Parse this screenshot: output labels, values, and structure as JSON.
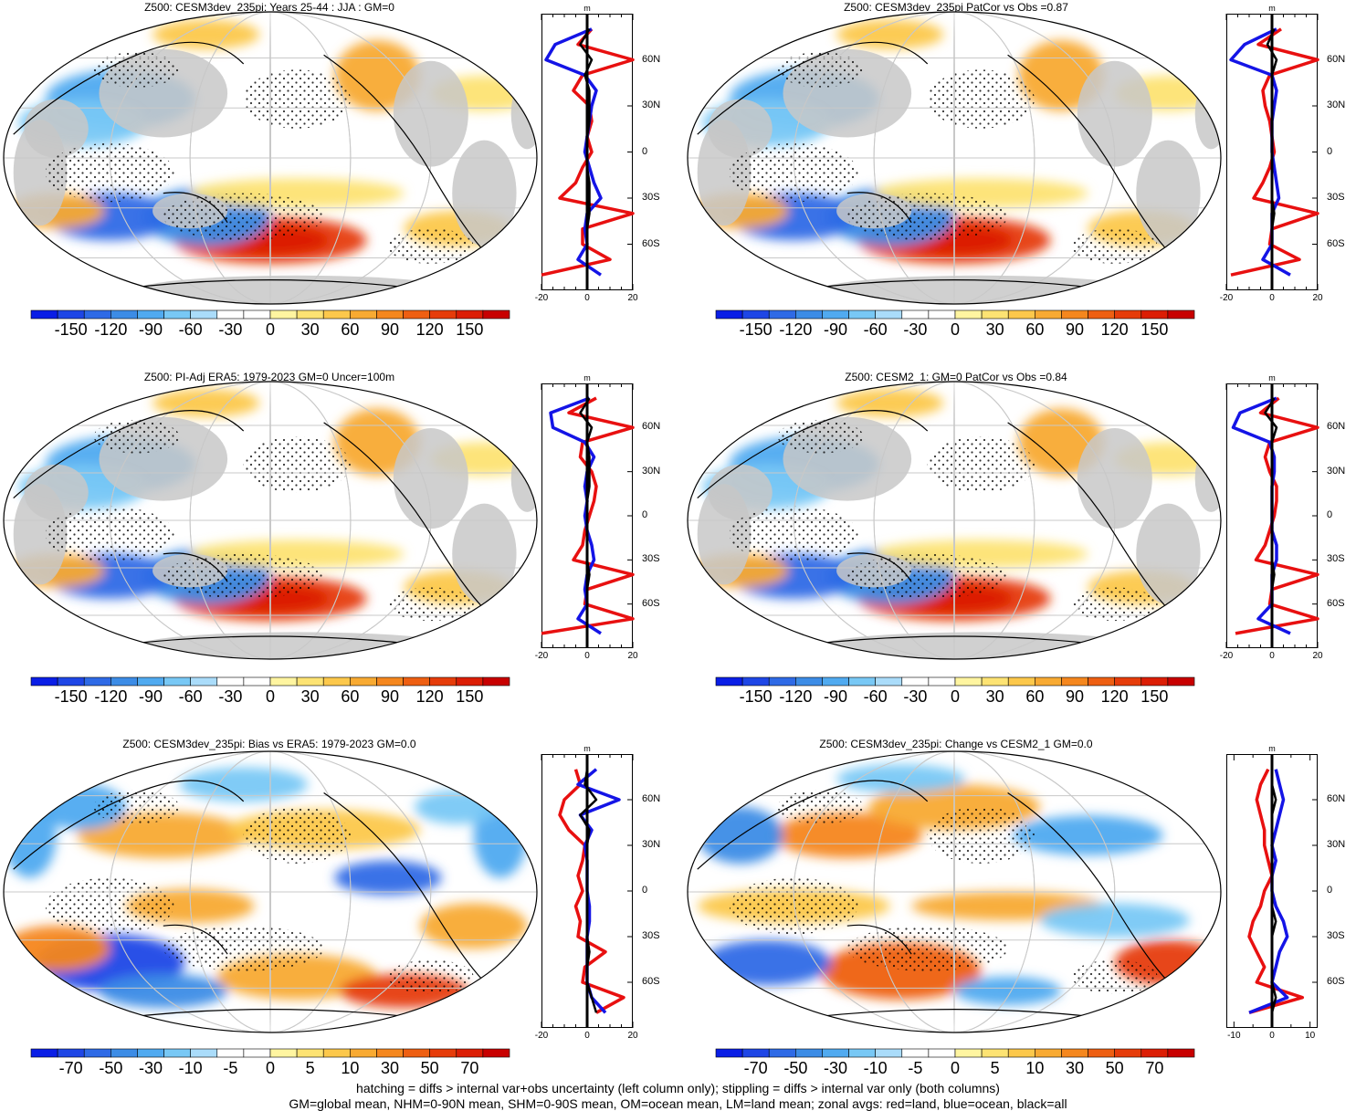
{
  "panels": [
    {
      "title": "Z500: CESM3dev_235pi: Years 25-44 : JJA : GM=0",
      "colorbar": {
        "labels": [
          "-150",
          "-120",
          "-90",
          "-60",
          "-30",
          "0",
          "30",
          "60",
          "90",
          "120",
          "150"
        ]
      },
      "profile": {
        "unit": "m",
        "xticks": [
          "-20",
          "0",
          "20"
        ],
        "yticks": [
          "60N",
          "30N",
          "0",
          "30S",
          "60S"
        ]
      }
    },
    {
      "title": "Z500: CESM3dev_235pi PatCor vs Obs =0.87",
      "colorbar": {
        "labels": [
          "-150",
          "-120",
          "-90",
          "-60",
          "-30",
          "0",
          "30",
          "60",
          "90",
          "120",
          "150"
        ]
      },
      "profile": {
        "unit": "m",
        "xticks": [
          "-20",
          "0",
          "20"
        ],
        "yticks": [
          "60N",
          "30N",
          "0",
          "30S",
          "60S"
        ]
      }
    },
    {
      "title": "Z500: PI-Adj ERA5: 1979-2023 GM=0 Uncer=100m",
      "colorbar": {
        "labels": [
          "-150",
          "-120",
          "-90",
          "-60",
          "-30",
          "0",
          "30",
          "60",
          "90",
          "120",
          "150"
        ]
      },
      "profile": {
        "unit": "m",
        "xticks": [
          "-20",
          "0",
          "20"
        ],
        "yticks": [
          "60N",
          "30N",
          "0",
          "30S",
          "60S"
        ]
      }
    },
    {
      "title": "Z500: CESM2_1: GM=0 PatCor vs Obs =0.84",
      "colorbar": {
        "labels": [
          "-150",
          "-120",
          "-90",
          "-60",
          "-30",
          "0",
          "30",
          "60",
          "90",
          "120",
          "150"
        ]
      },
      "profile": {
        "unit": "m",
        "xticks": [
          "-20",
          "0",
          "20"
        ],
        "yticks": [
          "60N",
          "30N",
          "0",
          "30S",
          "60S"
        ]
      }
    },
    {
      "title": "Z500: CESM3dev_235pi: Bias vs ERA5: 1979-2023 GM=0.0",
      "colorbar": {
        "labels": [
          "-70",
          "-50",
          "-30",
          "-10",
          "-5",
          "0",
          "5",
          "10",
          "30",
          "50",
          "70"
        ]
      },
      "profile": {
        "unit": "m",
        "xticks": [
          "-20",
          "0",
          "20"
        ],
        "yticks": [
          "60N",
          "30N",
          "0",
          "30S",
          "60S"
        ]
      }
    },
    {
      "title": "Z500: CESM3dev_235pi: Change vs CESM2_1 GM=0.0",
      "colorbar": {
        "labels": [
          "-70",
          "-50",
          "-30",
          "-10",
          "-5",
          "0",
          "5",
          "10",
          "30",
          "50",
          "70"
        ]
      },
      "profile": {
        "unit": "m",
        "xticks": [
          "-10",
          "0",
          "10"
        ],
        "yticks": [
          "60N",
          "30N",
          "0",
          "30S",
          "60S"
        ]
      }
    }
  ],
  "footer": {
    "line1": "hatching = diffs > internal var+obs uncertainty (left column only); stippling = diffs > internal var only (both columns)",
    "line2": "GM=global mean, NHM=0-90N mean, SHM=0-90S mean, OM=ocean mean, LM=land mean; zonal avgs: red=land, blue=ocean, black=all"
  },
  "colors": {
    "scale": [
      "#0a1ee6",
      "#1e46e6",
      "#2e6ae6",
      "#3c8ce6",
      "#50aaf0",
      "#78c8f5",
      "#aadcfa",
      "#ffffff",
      "#ffffff",
      "#fff5a0",
      "#fde373",
      "#fcc84b",
      "#f8aa32",
      "#f5871e",
      "#ee5f12",
      "#e63c0a",
      "#dc1e05",
      "#c80000"
    ],
    "land": "#c8c8c8",
    "grid": "#c8c8c8",
    "land_line": "#e81010",
    "ocean_line": "#1414e6",
    "all_line": "#000000"
  },
  "chart_data": [
    {
      "type": "heatmap",
      "title": "Z500: CESM3dev_235pi: Years 25-44 : JJA : GM=0",
      "colorbar_levels": [
        -150,
        -120,
        -90,
        -60,
        -30,
        0,
        30,
        60,
        90,
        120,
        150
      ],
      "zonal_mean": {
        "lat": [
          80,
          70,
          60,
          50,
          40,
          30,
          20,
          10,
          0,
          -10,
          -20,
          -30,
          -40,
          -50,
          -60,
          -70,
          -80
        ],
        "land": [
          2,
          -4,
          20,
          -2,
          -6,
          1,
          2,
          0,
          2,
          -2,
          -5,
          -12,
          20,
          -2,
          -2,
          10,
          -20
        ],
        "ocean": [
          2,
          -14,
          -18,
          -1,
          4,
          2,
          1,
          0,
          -1,
          1,
          3,
          6,
          0,
          -1,
          0,
          -4,
          6
        ],
        "all": [
          1,
          -3,
          2,
          -1,
          1,
          1,
          1,
          0,
          0,
          0,
          1,
          1,
          1,
          0,
          0,
          0,
          0
        ]
      },
      "profile_xlim": [
        -20,
        20
      ]
    },
    {
      "type": "heatmap",
      "title": "Z500: CESM3dev_235pi PatCor vs Obs =0.87",
      "colorbar_levels": [
        -150,
        -120,
        -90,
        -60,
        -30,
        0,
        30,
        60,
        90,
        120,
        150
      ],
      "zonal_mean": {
        "lat": [
          80,
          70,
          60,
          50,
          40,
          30,
          20,
          10,
          0,
          -10,
          -20,
          -30,
          -40,
          -50,
          -60,
          -70,
          -80
        ],
        "land": [
          4,
          -6,
          20,
          -1,
          -4,
          -3,
          -1,
          0,
          1,
          -1,
          -4,
          -8,
          20,
          0,
          -1,
          12,
          -18
        ],
        "ocean": [
          2,
          -12,
          -18,
          0,
          2,
          1,
          0,
          0,
          0,
          1,
          2,
          3,
          0,
          0,
          0,
          -4,
          8
        ],
        "all": [
          1,
          -2,
          2,
          0,
          0,
          0,
          0,
          0,
          0,
          0,
          0,
          0,
          1,
          0,
          0,
          0,
          0
        ]
      },
      "profile_xlim": [
        -20,
        20
      ]
    },
    {
      "type": "heatmap",
      "title": "Z500: PI-Adj ERA5: 1979-2023 GM=0 Uncer=100m",
      "colorbar_levels": [
        -150,
        -120,
        -90,
        -60,
        -30,
        0,
        30,
        60,
        90,
        120,
        150
      ],
      "zonal_mean": {
        "lat": [
          80,
          70,
          60,
          50,
          40,
          30,
          20,
          10,
          0,
          -10,
          -20,
          -30,
          -40,
          -50,
          -60,
          -70,
          -80
        ],
        "land": [
          4,
          -8,
          20,
          -2,
          -3,
          2,
          4,
          3,
          1,
          -1,
          -2,
          -6,
          20,
          0,
          -1,
          20,
          -20
        ],
        "ocean": [
          1,
          -16,
          -15,
          -1,
          3,
          0,
          -1,
          0,
          -1,
          0,
          2,
          3,
          0,
          -1,
          0,
          -4,
          6
        ],
        "all": [
          1,
          -3,
          2,
          0,
          1,
          1,
          1,
          0,
          0,
          0,
          0,
          0,
          1,
          0,
          0,
          0,
          0
        ]
      },
      "profile_xlim": [
        -20,
        20
      ]
    },
    {
      "type": "heatmap",
      "title": "Z500: CESM2_1: GM=0 PatCor vs Obs =0.84",
      "colorbar_levels": [
        -150,
        -120,
        -90,
        -60,
        -30,
        0,
        30,
        60,
        90,
        120,
        150
      ],
      "zonal_mean": {
        "lat": [
          80,
          70,
          60,
          50,
          40,
          30,
          20,
          10,
          0,
          -10,
          -20,
          -30,
          -40,
          -50,
          -60,
          -70,
          -80
        ],
        "land": [
          3,
          -5,
          20,
          -1,
          -3,
          -1,
          2,
          2,
          1,
          -1,
          -3,
          -7,
          20,
          0,
          -1,
          20,
          -16
        ],
        "ocean": [
          2,
          -14,
          -17,
          -1,
          1,
          1,
          0,
          0,
          0,
          0,
          2,
          2,
          0,
          0,
          0,
          -6,
          8
        ],
        "all": [
          1,
          -3,
          2,
          0,
          0,
          0,
          0,
          0,
          0,
          0,
          0,
          0,
          1,
          0,
          0,
          0,
          0
        ]
      },
      "profile_xlim": [
        -20,
        20
      ]
    },
    {
      "type": "heatmap",
      "title": "Z500: CESM3dev_235pi: Bias vs ERA5: 1979-2023 GM=0.0",
      "colorbar_levels": [
        -70,
        -50,
        -30,
        -10,
        -5,
        0,
        5,
        10,
        30,
        50,
        70
      ],
      "zonal_mean": {
        "lat": [
          80,
          70,
          60,
          50,
          40,
          30,
          20,
          10,
          0,
          -10,
          -20,
          -30,
          -40,
          -50,
          -60,
          -70,
          -80
        ],
        "land": [
          -5,
          -3,
          -10,
          -12,
          -8,
          -1,
          -2,
          -4,
          -2,
          -5,
          -3,
          -4,
          8,
          -1,
          -2,
          16,
          4
        ],
        "ocean": [
          4,
          -4,
          14,
          -3,
          2,
          -1,
          0,
          0,
          0,
          1,
          1,
          0,
          0,
          0,
          0,
          2,
          8
        ],
        "all": [
          0,
          -1,
          4,
          -3,
          1,
          0,
          0,
          0,
          0,
          0,
          0,
          0,
          1,
          0,
          0,
          2,
          4
        ]
      },
      "profile_xlim": [
        -20,
        20
      ]
    },
    {
      "type": "heatmap",
      "title": "Z500: CESM3dev_235pi: Change vs CESM2_1 GM=0.0",
      "colorbar_levels": [
        -70,
        -50,
        -30,
        -10,
        -5,
        0,
        5,
        10,
        30,
        50,
        70
      ],
      "zonal_mean": {
        "lat": [
          80,
          70,
          60,
          50,
          40,
          30,
          20,
          10,
          0,
          -10,
          -20,
          -30,
          -40,
          -50,
          -60,
          -70,
          -80
        ],
        "land": [
          -1,
          -3,
          -4,
          -3,
          -2,
          -2,
          -1,
          0,
          -2,
          -3,
          -5,
          -6,
          -4,
          -2,
          -4,
          8,
          -6
        ],
        "ocean": [
          1,
          2,
          3,
          2,
          1,
          0,
          1,
          0,
          0,
          1,
          3,
          4,
          2,
          1,
          0,
          4,
          -6
        ],
        "all": [
          0,
          0,
          1,
          0,
          0,
          0,
          0,
          0,
          0,
          0,
          1,
          0,
          0,
          0,
          0,
          1,
          0
        ]
      },
      "profile_xlim": [
        -12,
        12
      ]
    }
  ]
}
